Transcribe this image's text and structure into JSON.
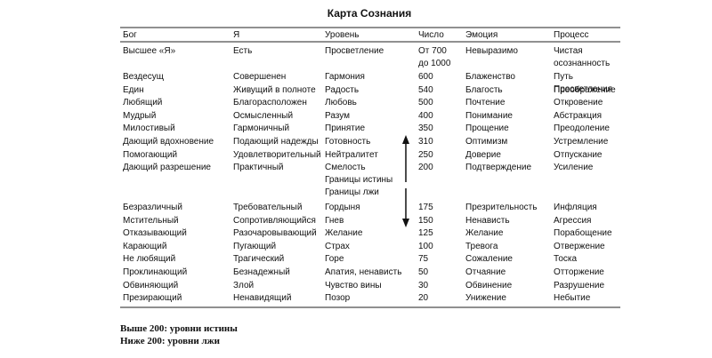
{
  "title": "Карта Сознания",
  "table": {
    "header": [
      "Бог",
      "Я",
      "Уровень",
      "Число",
      "Эмоция",
      "Процесс"
    ],
    "rows_above": [
      [
        "Высшее «Я»",
        "Есть",
        "Просветление",
        "От 700 до 1000",
        "Невыразимо",
        "Чистая осознанность"
      ],
      [
        "Вездесущ",
        "Совершенен",
        "Гармония",
        "600",
        "Блаженство",
        "Путь Просветления"
      ],
      [
        "Един",
        "Живущий в полноте",
        "Радость",
        "540",
        "Благость",
        "Преображение"
      ],
      [
        "Любящий",
        "Благорасположен",
        "Любовь",
        "500",
        "Почтение",
        "Откровение"
      ],
      [
        "Мудрый",
        "Осмысленный",
        "Разум",
        "400",
        "Понимание",
        "Абстракция"
      ],
      [
        "Милостивый",
        "Гармоничный",
        "Принятие",
        "350",
        "Прощение",
        "Преодоление"
      ],
      [
        "Дающий вдохновение",
        "Подающий надежды",
        "Готовность",
        "310",
        "Оптимизм",
        "Устремление"
      ],
      [
        "Помогающий",
        "Удовлетворительный",
        "Нейтралитет",
        "250",
        "Доверие",
        "Отпускание"
      ],
      [
        "Дающий разрешение",
        "Практичный",
        "Смелость",
        "200",
        "Подтверждение",
        "Усиление"
      ]
    ],
    "boundary": [
      "Границы истины",
      "Границы лжи"
    ],
    "rows_below": [
      [
        "Безразличный",
        "Требовательный",
        "Гордыня",
        "175",
        "Презрительность",
        "Инфляция"
      ],
      [
        "Мстительный",
        "Сопротивляющийся",
        "Гнев",
        "150",
        "Ненависть",
        "Агрессия"
      ],
      [
        "Отказывающий",
        "Разочаровывающий",
        "Желание",
        "125",
        "Желание",
        "Порабощение"
      ],
      [
        "Карающий",
        "Пугающий",
        "Страх",
        "100",
        "Тревога",
        "Отвержение"
      ],
      [
        "Не любящий",
        "Трагический",
        "Горе",
        "75",
        "Сожаление",
        "Тоска"
      ],
      [
        "Проклинающий",
        "Безнадежный",
        "Апатия, ненависть",
        "50",
        "Отчаяние",
        "Отторжение"
      ],
      [
        "Обвиняющий",
        "Злой",
        "Чувство вины",
        "30",
        "Обвинение",
        "Разрушение"
      ],
      [
        "Презирающий",
        "Ненавидящий",
        "Позор",
        "20",
        "Унижение",
        "Небытие"
      ]
    ]
  },
  "notes": [
    "Выше 200: уровни истины",
    "Ниже 200: уровни лжи"
  ]
}
